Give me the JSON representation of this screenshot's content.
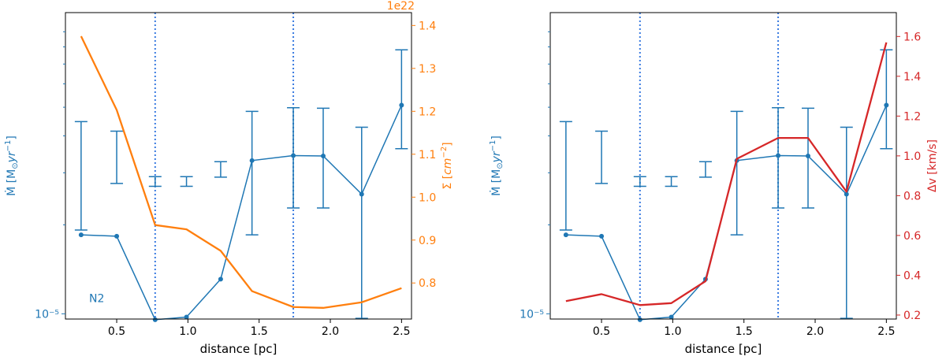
{
  "chart_data": [
    {
      "type": "line",
      "panel": "left",
      "xlabel": "distance [pc]",
      "xlim": [
        0.14,
        2.57
      ],
      "xticks": [
        0.5,
        1.0,
        1.5,
        2.0,
        2.5
      ],
      "xtick_labels": [
        "0.5",
        "1.0",
        "1.5",
        "2.0",
        "2.5"
      ],
      "ylabel_left": "Ṁ [M⊙yr⁻¹]",
      "ylabel_left_parts": [
        "Ṁ [M",
        "⊙",
        "yr",
        "−1",
        "]"
      ],
      "ylim_left": [
        9.6e-06,
        0.0001045
      ],
      "yscale_left": "log",
      "yticks_left": [
        1e-05
      ],
      "ytick_labels_left": [
        "10⁻⁵"
      ],
      "ylabel_right": "Σ [cm⁻²]",
      "ylabel_right_parts": [
        "Σ [",
        "cm",
        "−2",
        "]"
      ],
      "ylim_right": [
        0.716,
        1.43
      ],
      "yticks_right": [
        0.8,
        0.9,
        1.0,
        1.1,
        1.2,
        1.3,
        1.4
      ],
      "ytick_labels_right": [
        "0.8",
        "0.9",
        "1.0",
        "1.1",
        "1.2",
        "1.3",
        "1.4"
      ],
      "right_offset_label": "1e22",
      "annotation": "N2",
      "vlines": [
        0.77,
        1.74
      ],
      "series": [
        {
          "name": "Ṁ",
          "axis": "left",
          "color": "#1f77b4",
          "x": [
            0.25,
            0.5,
            0.77,
            0.99,
            1.23,
            1.45,
            1.74,
            1.95,
            2.22,
            2.5
          ],
          "values": [
            1.85e-05,
            1.83e-05,
            9.55e-06,
            9.75e-06,
            1.31e-05,
            3.3e-05,
            3.43e-05,
            3.42e-05,
            2.54e-05,
            5.08e-05
          ],
          "err_low": [
            1.92e-05,
            2.76e-05,
            2.7e-05,
            2.7e-05,
            2.9e-05,
            1.85e-05,
            2.28e-05,
            2.28e-05,
            9.65e-06,
            3.62e-05
          ],
          "err_high": [
            4.47e-05,
            4.15e-05,
            2.91e-05,
            2.91e-05,
            3.27e-05,
            4.84e-05,
            4.98e-05,
            4.96e-05,
            4.28e-05,
            7.82e-05
          ]
        },
        {
          "name": "Σ",
          "axis": "right",
          "color": "#ff7f0e",
          "x": [
            0.25,
            0.5,
            0.77,
            0.99,
            1.23,
            1.45,
            1.74,
            1.95,
            2.22,
            2.5
          ],
          "values": [
            1.375,
            1.203,
            0.935,
            0.925,
            0.875,
            0.781,
            0.744,
            0.742,
            0.755,
            0.788
          ]
        }
      ]
    },
    {
      "type": "line",
      "panel": "right",
      "xlabel": "distance [pc]",
      "xlim": [
        0.14,
        2.57
      ],
      "xticks": [
        0.5,
        1.0,
        1.5,
        2.0,
        2.5
      ],
      "xtick_labels": [
        "0.5",
        "1.0",
        "1.5",
        "2.0",
        "2.5"
      ],
      "ylabel_left": "Ṁ [M⊙yr⁻¹]",
      "ylabel_left_parts": [
        "Ṁ [M",
        "⊙",
        "yr",
        "−1",
        "]"
      ],
      "ylim_left": [
        9.6e-06,
        0.0001045
      ],
      "yscale_left": "log",
      "yticks_left": [
        1e-05
      ],
      "ytick_labels_left": [
        "10⁻⁵"
      ],
      "ylabel_right": "Δv [km/s]",
      "ylim_right": [
        0.18,
        1.72
      ],
      "yticks_right": [
        0.2,
        0.4,
        0.6,
        0.8,
        1.0,
        1.2,
        1.4,
        1.6
      ],
      "ytick_labels_right": [
        "0.2",
        "0.4",
        "0.6",
        "0.8",
        "1.0",
        "1.2",
        "1.4",
        "1.6"
      ],
      "vlines": [
        0.77,
        1.74
      ],
      "series": [
        {
          "name": "Ṁ",
          "axis": "left",
          "color": "#1f77b4",
          "x": [
            0.25,
            0.5,
            0.77,
            0.99,
            1.23,
            1.45,
            1.74,
            1.95,
            2.22,
            2.5
          ],
          "values": [
            1.85e-05,
            1.83e-05,
            9.55e-06,
            9.75e-06,
            1.31e-05,
            3.3e-05,
            3.43e-05,
            3.42e-05,
            2.54e-05,
            5.08e-05
          ],
          "err_low": [
            1.92e-05,
            2.76e-05,
            2.7e-05,
            2.7e-05,
            2.9e-05,
            1.85e-05,
            2.28e-05,
            2.28e-05,
            9.65e-06,
            3.62e-05
          ],
          "err_high": [
            4.47e-05,
            4.15e-05,
            2.91e-05,
            2.91e-05,
            3.27e-05,
            4.84e-05,
            4.98e-05,
            4.96e-05,
            4.28e-05,
            7.82e-05
          ]
        },
        {
          "name": "Δv",
          "axis": "right",
          "color": "#d62728",
          "x": [
            0.25,
            0.5,
            0.77,
            0.99,
            1.23,
            1.45,
            1.74,
            1.95,
            2.22,
            2.5
          ],
          "values": [
            0.27,
            0.305,
            0.25,
            0.26,
            0.37,
            0.985,
            1.09,
            1.09,
            0.82,
            1.57
          ]
        }
      ]
    }
  ]
}
